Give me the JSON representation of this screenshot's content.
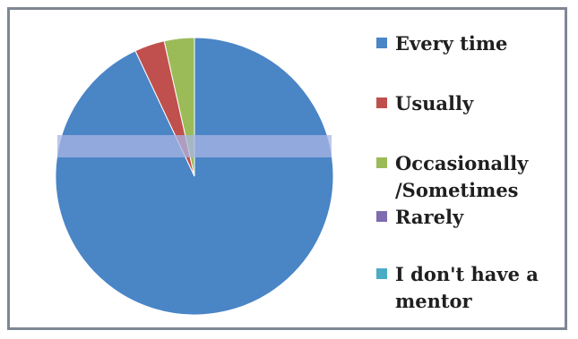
{
  "chart_data": {
    "type": "pie",
    "title": "",
    "start_angle_deg": 0,
    "direction": "clockwise",
    "slices": [
      {
        "label": "Every time",
        "value": 93,
        "color": "#4a85c6"
      },
      {
        "label": "Usually",
        "value": 3.5,
        "color": "#c0504d"
      },
      {
        "label": "Occasionally\n/Sometimes",
        "value": 3.5,
        "color": "#9bbb59"
      },
      {
        "label": "Rarely",
        "value": 0,
        "color": "#7f6bb0"
      },
      {
        "label": "I don't have a\nmentor",
        "value": 0,
        "color": "#4bacc6"
      }
    ],
    "legend_position": "right"
  }
}
